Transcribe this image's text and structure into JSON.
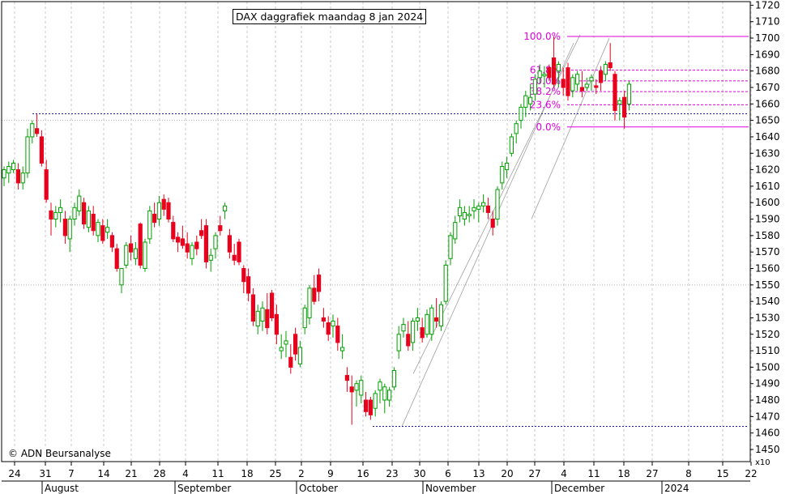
{
  "title": "DAX daggrafiek maandag 8 jan 2024",
  "copyright": "© ADN Beursanalyse",
  "x_multiplier": "x10",
  "colors": {
    "up": "#00a000",
    "down": "#e8001c",
    "fib": "#dd00dd",
    "level": "#1c1c9c",
    "channel": "#a0a0a0"
  },
  "chart_data": {
    "type": "candlestick",
    "title": "DAX daggrafiek maandag 8 jan 2024",
    "ylabel": "",
    "xlabel": "",
    "ylim": [
      1450,
      1725
    ],
    "y_ticks": [
      1450,
      1460,
      1470,
      1480,
      1490,
      1500,
      1510,
      1520,
      1530,
      1540,
      1550,
      1560,
      1570,
      1580,
      1590,
      1600,
      1610,
      1620,
      1630,
      1640,
      1650,
      1660,
      1670,
      1680,
      1690,
      1700,
      1710,
      1720
    ],
    "x_tick_labels": [
      "24",
      "31",
      "7",
      "14",
      "21",
      "28",
      "4",
      "11",
      "18",
      "25",
      "2",
      "9",
      "16",
      "23",
      "30",
      "6",
      "13",
      "20",
      "27",
      "4",
      "11",
      "18",
      "27",
      "8",
      "15",
      "22"
    ],
    "month_labels": [
      "August",
      "September",
      "October",
      "November",
      "December",
      "2024"
    ],
    "candles": [
      [
        1615,
        1622,
        1610,
        1620
      ],
      [
        1618,
        1625,
        1612,
        1622
      ],
      [
        1620,
        1626,
        1618,
        1624
      ],
      [
        1620,
        1624,
        1608,
        1612
      ],
      [
        1612,
        1622,
        1608,
        1618
      ],
      [
        1618,
        1645,
        1615,
        1640
      ],
      [
        1640,
        1650,
        1636,
        1648
      ],
      [
        1645,
        1654,
        1640,
        1642
      ],
      [
        1640,
        1644,
        1622,
        1624
      ],
      [
        1620,
        1626,
        1600,
        1602
      ],
      [
        1595,
        1600,
        1580,
        1590
      ],
      [
        1590,
        1598,
        1585,
        1594
      ],
      [
        1594,
        1602,
        1588,
        1597
      ],
      [
        1590,
        1595,
        1575,
        1580
      ],
      [
        1578,
        1592,
        1570,
        1590
      ],
      [
        1590,
        1600,
        1586,
        1597
      ],
      [
        1595,
        1608,
        1592,
        1604
      ],
      [
        1600,
        1603,
        1584,
        1587
      ],
      [
        1585,
        1598,
        1582,
        1595
      ],
      [
        1593,
        1598,
        1580,
        1583
      ],
      [
        1580,
        1590,
        1576,
        1588
      ],
      [
        1586,
        1590,
        1575,
        1577
      ],
      [
        1582,
        1590,
        1578,
        1585
      ],
      [
        1580,
        1582,
        1570,
        1573
      ],
      [
        1572,
        1575,
        1558,
        1560
      ],
      [
        1550,
        1560,
        1545,
        1560
      ],
      [
        1562,
        1576,
        1560,
        1574
      ],
      [
        1575,
        1580,
        1565,
        1570
      ],
      [
        1566,
        1576,
        1562,
        1572
      ],
      [
        1587,
        1588,
        1560,
        1562
      ],
      [
        1560,
        1578,
        1558,
        1576
      ],
      [
        1578,
        1598,
        1575,
        1595
      ],
      [
        1593,
        1600,
        1585,
        1588
      ],
      [
        1590,
        1604,
        1586,
        1600
      ],
      [
        1602,
        1605,
        1592,
        1596
      ],
      [
        1600,
        1603,
        1588,
        1590
      ],
      [
        1588,
        1592,
        1576,
        1578
      ],
      [
        1579,
        1582,
        1570,
        1576
      ],
      [
        1578,
        1586,
        1572,
        1574
      ],
      [
        1575,
        1582,
        1566,
        1570
      ],
      [
        1566,
        1576,
        1562,
        1574
      ],
      [
        1576,
        1580,
        1568,
        1572
      ],
      [
        1583,
        1590,
        1578,
        1580
      ],
      [
        1586,
        1590,
        1560,
        1564
      ],
      [
        1565,
        1572,
        1558,
        1568
      ],
      [
        1572,
        1582,
        1566,
        1580
      ],
      [
        1586,
        1592,
        1580,
        1583
      ],
      [
        1595,
        1600,
        1590,
        1598
      ],
      [
        1580,
        1584,
        1566,
        1570
      ],
      [
        1568,
        1575,
        1562,
        1565
      ],
      [
        1576,
        1578,
        1562,
        1564
      ],
      [
        1560,
        1562,
        1545,
        1552
      ],
      [
        1555,
        1560,
        1540,
        1545
      ],
      [
        1544,
        1548,
        1525,
        1528
      ],
      [
        1525,
        1538,
        1520,
        1534
      ],
      [
        1528,
        1540,
        1522,
        1536
      ],
      [
        1535,
        1545,
        1520,
        1524
      ],
      [
        1545,
        1547,
        1528,
        1530
      ],
      [
        1532,
        1538,
        1514,
        1520
      ],
      [
        1510,
        1520,
        1505,
        1512
      ],
      [
        1514,
        1522,
        1506,
        1516
      ],
      [
        1506,
        1514,
        1496,
        1500
      ],
      [
        1520,
        1524,
        1504,
        1508
      ],
      [
        1502,
        1516,
        1500,
        1512
      ],
      [
        1524,
        1538,
        1520,
        1536
      ],
      [
        1530,
        1550,
        1526,
        1548
      ],
      [
        1548,
        1556,
        1538,
        1540
      ],
      [
        1556,
        1560,
        1540,
        1546
      ],
      [
        1530,
        1536,
        1524,
        1528
      ],
      [
        1527,
        1531,
        1516,
        1520
      ],
      [
        1525,
        1532,
        1518,
        1528
      ],
      [
        1525,
        1530,
        1510,
        1515
      ],
      [
        1510,
        1520,
        1505,
        1512
      ],
      [
        1495,
        1500,
        1485,
        1492
      ],
      [
        1488,
        1495,
        1465,
        1485
      ],
      [
        1486,
        1492,
        1476,
        1490
      ],
      [
        1483,
        1495,
        1478,
        1492
      ],
      [
        1480,
        1485,
        1470,
        1473
      ],
      [
        1480,
        1482,
        1468,
        1471
      ],
      [
        1475,
        1486,
        1470,
        1484
      ],
      [
        1486,
        1493,
        1478,
        1491
      ],
      [
        1480,
        1490,
        1472,
        1488
      ],
      [
        1480,
        1488,
        1476,
        1486
      ],
      [
        1488,
        1500,
        1486,
        1498
      ],
      [
        1510,
        1525,
        1505,
        1520
      ],
      [
        1522,
        1530,
        1518,
        1526
      ],
      [
        1520,
        1528,
        1510,
        1513
      ],
      [
        1515,
        1530,
        1510,
        1528
      ],
      [
        1528,
        1536,
        1522,
        1530
      ],
      [
        1524,
        1530,
        1515,
        1518
      ],
      [
        1520,
        1535,
        1518,
        1532
      ],
      [
        1520,
        1538,
        1516,
        1536
      ],
      [
        1530,
        1542,
        1524,
        1528
      ],
      [
        1525,
        1540,
        1522,
        1538
      ],
      [
        1540,
        1565,
        1538,
        1562
      ],
      [
        1566,
        1582,
        1562,
        1580
      ],
      [
        1578,
        1592,
        1575,
        1588
      ],
      [
        1592,
        1602,
        1588,
        1597
      ],
      [
        1590,
        1598,
        1586,
        1594
      ],
      [
        1592,
        1598,
        1588,
        1593
      ],
      [
        1595,
        1602,
        1590,
        1597
      ],
      [
        1596,
        1600,
        1588,
        1598
      ],
      [
        1598,
        1605,
        1594,
        1600
      ],
      [
        1598,
        1603,
        1590,
        1594
      ],
      [
        1590,
        1595,
        1580,
        1585
      ],
      [
        1590,
        1610,
        1586,
        1608
      ],
      [
        1612,
        1625,
        1608,
        1622
      ],
      [
        1620,
        1628,
        1615,
        1624
      ],
      [
        1630,
        1642,
        1628,
        1640
      ],
      [
        1642,
        1650,
        1636,
        1648
      ],
      [
        1650,
        1660,
        1645,
        1658
      ],
      [
        1658,
        1668,
        1652,
        1665
      ],
      [
        1660,
        1672,
        1656,
        1664
      ],
      [
        1666,
        1678,
        1662,
        1675
      ],
      [
        1676,
        1684,
        1672,
        1680
      ],
      [
        1677,
        1683,
        1670,
        1678
      ],
      [
        1682,
        1684,
        1674,
        1676
      ],
      [
        1688,
        1701,
        1670,
        1672
      ],
      [
        1680,
        1686,
        1670,
        1684
      ],
      [
        1675,
        1682,
        1665,
        1670
      ],
      [
        1682,
        1685,
        1662,
        1665
      ],
      [
        1668,
        1678,
        1664,
        1676
      ],
      [
        1672,
        1680,
        1668,
        1678
      ],
      [
        1670,
        1680,
        1664,
        1668
      ],
      [
        1670,
        1676,
        1668,
        1672
      ],
      [
        1674,
        1678,
        1668,
        1676
      ],
      [
        1671,
        1675,
        1666,
        1670
      ],
      [
        1680,
        1683,
        1668,
        1673
      ],
      [
        1678,
        1686,
        1674,
        1684
      ],
      [
        1685,
        1697,
        1680,
        1682
      ],
      [
        1678,
        1680,
        1650,
        1656
      ],
      [
        1660,
        1664,
        1650,
        1662
      ],
      [
        1664,
        1668,
        1645,
        1652
      ],
      [
        1660,
        1674,
        1656,
        1672
      ]
    ],
    "fibonacci": [
      {
        "label": "100.0%",
        "value": 1701
      },
      {
        "label": "61.8%",
        "value": 1680.5
      },
      {
        "label": "50.0%",
        "value": 1674
      },
      {
        "label": "38.2%",
        "value": 1667.5
      },
      {
        "label": "23.6%",
        "value": 1659.5
      },
      {
        "label": "0.0%",
        "value": 1646
      }
    ],
    "support_levels": [
      1654,
      1464
    ],
    "grid": true
  }
}
